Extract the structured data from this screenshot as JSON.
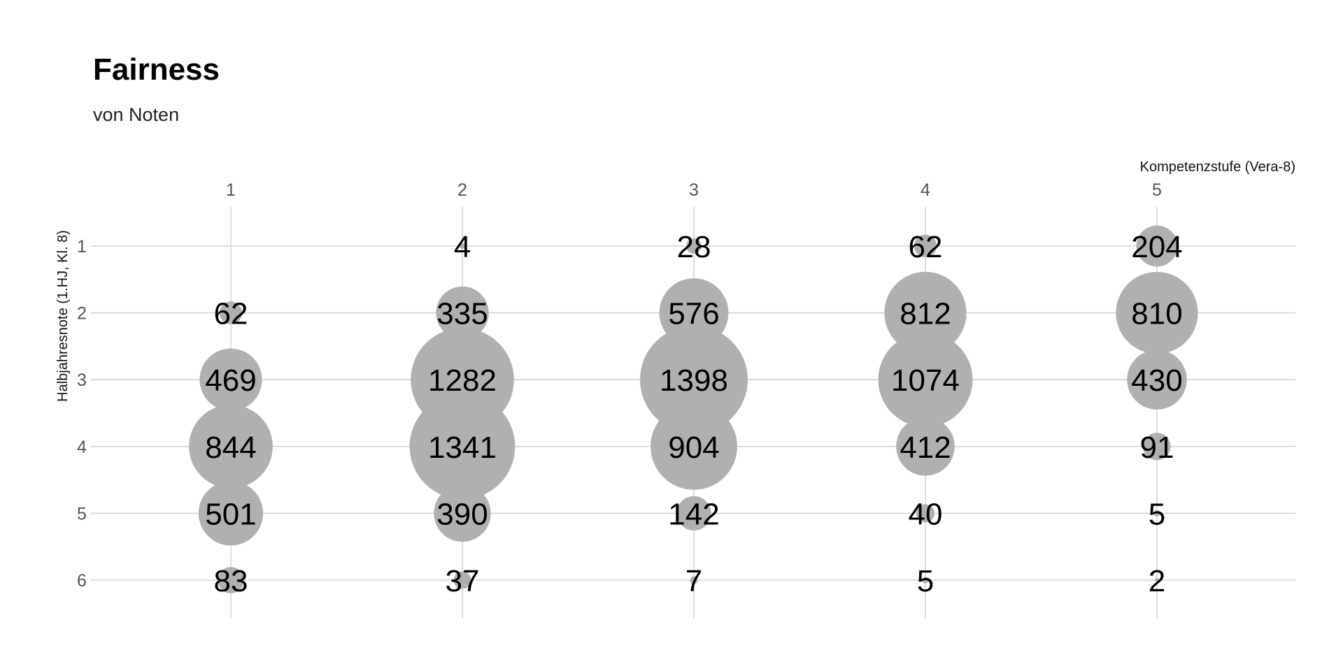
{
  "chart_data": {
    "type": "bubble",
    "title": "Fairness",
    "subtitle": "von Noten",
    "xlabel": "Kompetenzstufe (Vera-8)",
    "ylabel": "Halbjahresnote (1.HJ, Kl. 8)",
    "x_ticks": [
      "1",
      "2",
      "3",
      "4",
      "5"
    ],
    "y_ticks": [
      "1",
      "2",
      "3",
      "4",
      "5",
      "6"
    ],
    "x_axis_position": "top",
    "y_reversed": true,
    "grid": true,
    "bubble_color": "#b0b0b0",
    "points": [
      {
        "x": 1,
        "y": 2,
        "n": 62
      },
      {
        "x": 1,
        "y": 3,
        "n": 469
      },
      {
        "x": 1,
        "y": 4,
        "n": 844
      },
      {
        "x": 1,
        "y": 5,
        "n": 501
      },
      {
        "x": 1,
        "y": 6,
        "n": 83
      },
      {
        "x": 2,
        "y": 1,
        "n": 4
      },
      {
        "x": 2,
        "y": 2,
        "n": 335
      },
      {
        "x": 2,
        "y": 3,
        "n": 1282
      },
      {
        "x": 2,
        "y": 4,
        "n": 1341
      },
      {
        "x": 2,
        "y": 5,
        "n": 390
      },
      {
        "x": 2,
        "y": 6,
        "n": 37
      },
      {
        "x": 3,
        "y": 1,
        "n": 28
      },
      {
        "x": 3,
        "y": 2,
        "n": 576
      },
      {
        "x": 3,
        "y": 3,
        "n": 1398
      },
      {
        "x": 3,
        "y": 4,
        "n": 904
      },
      {
        "x": 3,
        "y": 5,
        "n": 142
      },
      {
        "x": 3,
        "y": 6,
        "n": 7
      },
      {
        "x": 4,
        "y": 1,
        "n": 62
      },
      {
        "x": 4,
        "y": 2,
        "n": 812
      },
      {
        "x": 4,
        "y": 3,
        "n": 1074
      },
      {
        "x": 4,
        "y": 4,
        "n": 412
      },
      {
        "x": 4,
        "y": 5,
        "n": 40
      },
      {
        "x": 4,
        "y": 6,
        "n": 5
      },
      {
        "x": 5,
        "y": 1,
        "n": 204
      },
      {
        "x": 5,
        "y": 2,
        "n": 810
      },
      {
        "x": 5,
        "y": 3,
        "n": 430
      },
      {
        "x": 5,
        "y": 4,
        "n": 91
      },
      {
        "x": 5,
        "y": 5,
        "n": 5
      },
      {
        "x": 5,
        "y": 6,
        "n": 2
      }
    ]
  }
}
